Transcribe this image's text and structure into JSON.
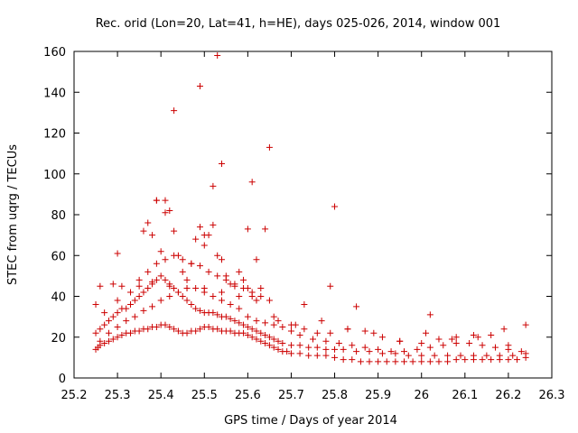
{
  "chart_data": {
    "type": "scatter",
    "title": "Rec. orid (Lon=20, Lat=41, h=HE), days 025-026, 2014, window 001",
    "xlabel": "GPS time / Days of year 2014",
    "ylabel": "STEC from uqrg / TECUs",
    "xlim": [
      25.2,
      26.3
    ],
    "ylim": [
      0,
      160
    ],
    "xticks": [
      25.2,
      25.3,
      25.4,
      25.5,
      25.6,
      25.7,
      25.8,
      25.9,
      26,
      26.1,
      26.2,
      26.3
    ],
    "xtick_labels": [
      "25.2",
      "25.3",
      "25.4",
      "25.5",
      "25.6",
      "25.7",
      "25.8",
      "25.9",
      "26",
      "26.1",
      "26.2",
      "26.3"
    ],
    "yticks": [
      0,
      20,
      40,
      60,
      80,
      100,
      120,
      140,
      160
    ],
    "ytick_labels": [
      "0",
      "20",
      "40",
      "60",
      "80",
      "100",
      "120",
      "140",
      "160"
    ],
    "grid": false,
    "marker": "+",
    "marker_color": "#cc0000",
    "series": [
      {
        "name": "STEC",
        "x": [
          25.25,
          25.255,
          25.26,
          25.27,
          25.28,
          25.29,
          25.3,
          25.31,
          25.32,
          25.33,
          25.34,
          25.35,
          25.36,
          25.37,
          25.38,
          25.39,
          25.4,
          25.41,
          25.42,
          25.43,
          25.44,
          25.45,
          25.46,
          25.47,
          25.48,
          25.49,
          25.5,
          25.51,
          25.52,
          25.53,
          25.54,
          25.55,
          25.56,
          25.57,
          25.58,
          25.59,
          25.6,
          25.61,
          25.62,
          25.63,
          25.64,
          25.65,
          25.66,
          25.67,
          25.68,
          25.69,
          25.7,
          25.72,
          25.74,
          25.76,
          25.78,
          25.8,
          25.82,
          25.84,
          25.86,
          25.88,
          25.9,
          25.92,
          25.94,
          25.96,
          25.98,
          26.0,
          26.02,
          26.04,
          26.06,
          26.08,
          26.1,
          26.12,
          26.14,
          26.16,
          26.18,
          26.2,
          26.22,
          26.24,
          25.25,
          25.26,
          25.27,
          25.28,
          25.29,
          25.3,
          25.31,
          25.32,
          25.33,
          25.34,
          25.35,
          25.36,
          25.37,
          25.38,
          25.39,
          25.4,
          25.41,
          25.42,
          25.43,
          25.44,
          25.45,
          25.46,
          25.47,
          25.48,
          25.49,
          25.5,
          25.51,
          25.52,
          25.53,
          25.54,
          25.55,
          25.56,
          25.57,
          25.58,
          25.59,
          25.6,
          25.61,
          25.62,
          25.63,
          25.64,
          25.65,
          25.66,
          25.67,
          25.68,
          25.7,
          25.72,
          25.74,
          25.76,
          25.78,
          25.8,
          25.82,
          25.85,
          25.88,
          25.91,
          25.94,
          25.97,
          26.0,
          26.03,
          26.06,
          26.09,
          26.12,
          26.15,
          26.18,
          26.21,
          26.24,
          25.26,
          25.28,
          25.3,
          25.32,
          25.34,
          25.36,
          25.38,
          25.4,
          25.42,
          25.44,
          25.46,
          25.48,
          25.5,
          25.52,
          25.54,
          25.56,
          25.58,
          25.6,
          25.62,
          25.64,
          25.66,
          25.68,
          25.7,
          25.72,
          25.75,
          25.78,
          25.81,
          25.84,
          25.87,
          25.9,
          25.93,
          25.96,
          25.99,
          26.02,
          26.05,
          26.08,
          26.11,
          26.14,
          26.17,
          26.2,
          26.23,
          25.27,
          25.3,
          25.33,
          25.35,
          25.37,
          25.39,
          25.41,
          25.43,
          25.45,
          25.47,
          25.49,
          25.51,
          25.53,
          25.55,
          25.57,
          25.59,
          25.61,
          25.63,
          25.65,
          25.67,
          25.7,
          25.73,
          25.76,
          25.79,
          25.83,
          25.87,
          25.91,
          25.95,
          26.0,
          26.04,
          26.08,
          26.12,
          26.16,
          26.2,
          25.36,
          25.37,
          25.38,
          25.39,
          25.4,
          25.41,
          25.42,
          25.43,
          25.44,
          25.45,
          25.46,
          25.47,
          25.48,
          25.49,
          25.5,
          25.51,
          25.52,
          25.53,
          25.54,
          25.55,
          25.56,
          25.57,
          25.58,
          25.59,
          25.6,
          25.61,
          25.62,
          25.63,
          25.25,
          25.3,
          25.39,
          25.41,
          25.43,
          25.49,
          25.5,
          25.52,
          25.53,
          25.54,
          25.6,
          25.61,
          25.62,
          25.64,
          25.65,
          25.73,
          25.79,
          25.8,
          25.85,
          26.02,
          26.24,
          25.26,
          25.29,
          25.31,
          25.35,
          25.38,
          25.42,
          25.46,
          25.5,
          25.54,
          25.58,
          25.62,
          25.66,
          25.71,
          25.77,
          25.83,
          25.89,
          25.95,
          26.01,
          26.07,
          26.13,
          26.19
        ],
        "y": [
          14,
          15,
          16,
          17,
          18,
          19,
          20,
          21,
          22,
          22,
          23,
          23,
          24,
          24,
          25,
          25,
          26,
          26,
          25,
          24,
          23,
          22,
          22,
          23,
          23,
          24,
          25,
          25,
          24,
          24,
          23,
          23,
          23,
          22,
          22,
          22,
          21,
          20,
          19,
          18,
          17,
          16,
          15,
          14,
          13,
          13,
          12,
          12,
          11,
          11,
          11,
          10,
          9,
          9,
          8,
          8,
          8,
          8,
          8,
          8,
          8,
          8,
          8,
          8,
          8,
          9,
          9,
          9,
          9,
          9,
          9,
          9,
          9,
          10,
          22,
          24,
          26,
          28,
          30,
          32,
          34,
          34,
          36,
          38,
          40,
          42,
          44,
          46,
          48,
          50,
          48,
          46,
          44,
          42,
          40,
          38,
          36,
          34,
          33,
          32,
          32,
          32,
          31,
          30,
          30,
          29,
          28,
          27,
          26,
          25,
          24,
          23,
          22,
          21,
          20,
          19,
          18,
          17,
          16,
          16,
          15,
          15,
          14,
          14,
          14,
          13,
          13,
          12,
          12,
          11,
          11,
          11,
          11,
          11,
          11,
          11,
          11,
          11,
          12,
          18,
          22,
          25,
          28,
          30,
          33,
          35,
          38,
          40,
          42,
          44,
          44,
          42,
          40,
          38,
          36,
          34,
          30,
          28,
          27,
          26,
          25,
          23,
          21,
          19,
          18,
          17,
          16,
          15,
          14,
          13,
          13,
          14,
          15,
          16,
          17,
          17,
          16,
          15,
          14,
          13,
          32,
          38,
          42,
          48,
          52,
          56,
          58,
          60,
          58,
          56,
          55,
          52,
          50,
          48,
          46,
          44,
          42,
          40,
          38,
          28,
          26,
          24,
          22,
          22,
          24,
          23,
          20,
          18,
          17,
          19,
          20,
          21,
          21,
          16,
          72,
          76,
          70,
          87,
          62,
          87,
          82,
          72,
          60,
          52,
          48,
          56,
          68,
          74,
          65,
          70,
          75,
          60,
          58,
          50,
          46,
          45,
          52,
          48,
          44,
          40,
          38,
          44,
          36,
          61,
          87,
          81,
          131,
          143,
          70,
          94,
          158,
          105,
          73,
          96,
          58,
          73,
          113,
          36,
          45,
          84,
          35,
          31,
          26,
          45,
          46,
          45,
          45,
          47,
          45,
          44,
          44,
          42,
          40,
          38,
          30,
          26,
          28,
          24,
          22,
          18,
          22,
          19,
          20,
          24
        ]
      }
    ]
  }
}
